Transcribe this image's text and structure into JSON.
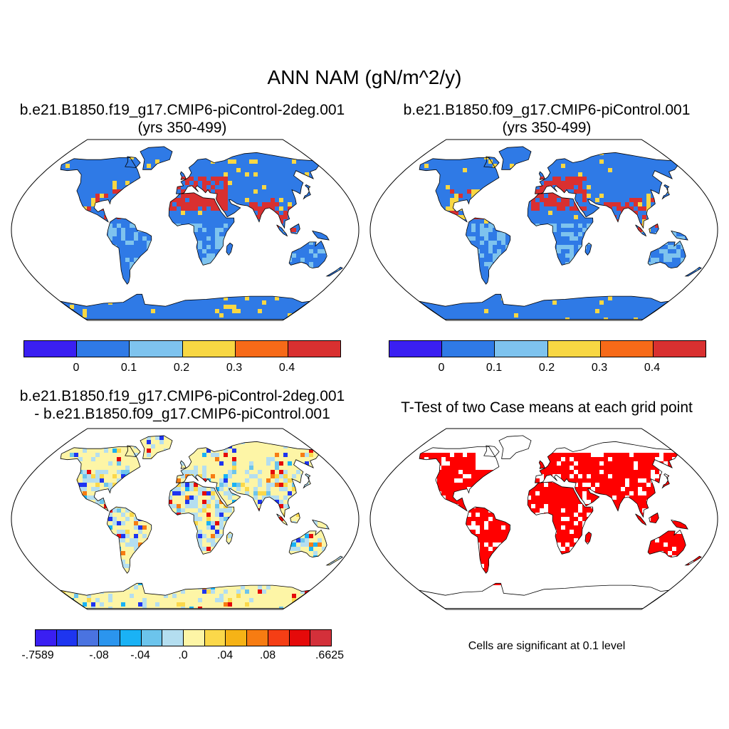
{
  "title": "ANN NAM (gN/m^2/y)",
  "panels": [
    {
      "title_line1": "b.e21.B1850.f19_g17.CMIP6-piControl-2deg.001",
      "title_line2": "(yrs 350-499)"
    },
    {
      "title_line1": "b.e21.B1850.f09_g17.CMIP6-piControl.001",
      "title_line2": "(yrs 350-499)"
    },
    {
      "title_line1": "b.e21.B1850.f19_g17.CMIP6-piControl-2deg.001",
      "title_line2": "- b.e21.B1850.f09_g17.CMIP6-piControl.001"
    },
    {
      "title_line1": "T-Test of two Case means at each grid point",
      "note": "Cells are significant at 0.1 level"
    }
  ],
  "colorbar_main": {
    "colors": [
      "#3a1ff2",
      "#2f7ae6",
      "#7ec3ee",
      "#f8d743",
      "#f76a18",
      "#d93030"
    ],
    "labels": [
      "0",
      "0.1",
      "0.2",
      "0.3",
      "0.4"
    ]
  },
  "colorbar_diff": {
    "colors": [
      "#3a1ff2",
      "#1e35f0",
      "#4a73e0",
      "#2b95ee",
      "#1ab2f5",
      "#6cc4ec",
      "#b4def0",
      "#fdf5a6",
      "#fbd84a",
      "#f6b316",
      "#f77c12",
      "#f53e15",
      "#e50a0a",
      "#d3303a"
    ],
    "labels": [
      "-.7589",
      "-.08",
      "-.04",
      ".0",
      ".04",
      ".08",
      ".6625"
    ]
  },
  "map_colors": {
    "land_base_main": "#2f7ae6",
    "land_base_diff": "#fdf5a6",
    "signif": "#ff0000",
    "hot": "#d93030",
    "warm": "#f8d743",
    "mid": "#7ec3ee"
  }
}
